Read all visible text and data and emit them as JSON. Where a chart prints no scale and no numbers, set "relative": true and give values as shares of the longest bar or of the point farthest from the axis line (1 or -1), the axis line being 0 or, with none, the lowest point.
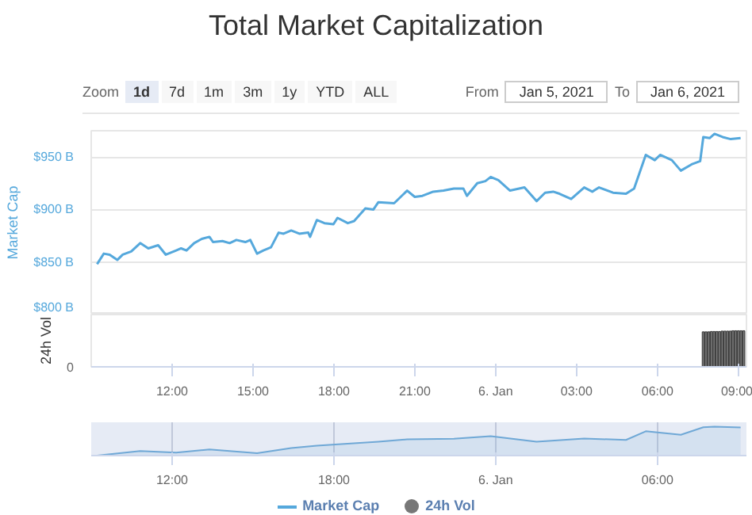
{
  "chart_data": [
    {
      "type": "line",
      "title": "Total Market Capitalization",
      "ylabel": "Market Cap",
      "annotations": [
        "Zoom",
        "1d",
        "7d",
        "1m",
        "3m",
        "1y",
        "YTD",
        "ALL",
        "From",
        "Jan 5, 2021",
        "To",
        "Jan 6, 2021"
      ],
      "xlim": [
        "2021-01-05T09:00",
        "2021-01-06T09:18"
      ],
      "ylim": [
        800,
        975
      ],
      "yticks": [
        {
          "value": 800,
          "label": "$800 B"
        },
        {
          "value": 850,
          "label": "$850 B"
        },
        {
          "value": 900,
          "label": "$900 B"
        },
        {
          "value": 950,
          "label": "$950 B"
        }
      ],
      "tick_labels": "y",
      "grid": "y",
      "legend": "bottom",
      "marker": "none",
      "series": [
        {
          "name": "Market Cap",
          "color": "#55a8dc",
          "x": [
            "2021-01-05T09:13",
            "2021-01-05T09:28",
            "2021-01-05T09:41",
            "2021-01-05T09:58",
            "2021-01-05T10:10",
            "2021-01-05T10:29",
            "2021-01-05T10:49",
            "2021-01-05T11:07",
            "2021-01-05T11:29",
            "2021-01-05T11:46",
            "2021-01-05T12:09",
            "2021-01-05T12:20",
            "2021-01-05T12:32",
            "2021-01-05T12:49",
            "2021-01-05T13:06",
            "2021-01-05T13:23",
            "2021-01-05T13:31",
            "2021-01-05T13:52",
            "2021-01-05T14:08",
            "2021-01-05T14:23",
            "2021-01-05T14:43",
            "2021-01-05T14:54",
            "2021-01-05T15:09",
            "2021-01-05T15:23",
            "2021-01-05T15:40",
            "2021-01-05T15:57",
            "2021-01-05T16:08",
            "2021-01-05T16:25",
            "2021-01-05T16:43",
            "2021-01-05T17:03",
            "2021-01-05T17:07",
            "2021-01-05T17:22",
            "2021-01-05T17:39",
            "2021-01-05T17:59",
            "2021-01-05T18:08",
            "2021-01-05T18:31",
            "2021-01-05T18:45",
            "2021-01-05T19:10",
            "2021-01-05T19:28",
            "2021-01-05T19:39",
            "2021-01-05T20:14",
            "2021-01-05T20:43",
            "2021-01-05T21:00",
            "2021-01-05T21:17",
            "2021-01-05T21:41",
            "2021-01-05T22:04",
            "2021-01-05T22:27",
            "2021-01-05T22:48",
            "2021-01-05T22:56",
            "2021-01-05T23:19",
            "2021-01-05T23:37",
            "2021-01-05T23:49",
            "2021-01-06T00:06",
            "2021-01-06T00:32",
            "2021-01-06T01:04",
            "2021-01-06T01:31",
            "2021-01-06T01:50",
            "2021-01-06T02:08",
            "2021-01-06T02:22",
            "2021-01-06T02:48",
            "2021-01-06T03:17",
            "2021-01-06T03:35",
            "2021-01-06T03:50",
            "2021-01-06T04:21",
            "2021-01-06T04:50",
            "2021-01-06T05:08",
            "2021-01-06T05:34",
            "2021-01-06T05:54",
            "2021-01-06T06:06",
            "2021-01-06T06:32",
            "2021-01-06T06:52",
            "2021-01-06T07:16",
            "2021-01-06T07:35",
            "2021-01-06T07:42",
            "2021-01-06T07:56",
            "2021-01-06T08:07",
            "2021-01-06T08:25",
            "2021-01-06T08:43",
            "2021-01-06T09:05"
          ],
          "values": [
            848,
            858,
            857,
            852,
            857,
            860,
            868,
            863,
            866,
            857,
            861,
            863,
            861,
            868,
            872,
            874,
            869,
            870,
            868,
            871,
            869,
            871,
            858,
            861,
            864,
            878,
            877,
            880,
            877,
            878,
            874,
            890,
            887,
            886,
            892,
            887,
            889,
            901,
            900,
            907,
            906,
            918,
            912,
            913,
            917,
            918,
            920,
            920,
            913,
            925,
            927,
            931,
            928,
            918,
            921,
            908,
            916,
            917,
            915,
            910,
            921,
            917,
            921,
            916,
            915,
            920,
            952,
            947,
            952,
            947,
            937,
            943,
            946,
            969,
            968,
            972,
            969,
            967,
            968
          ]
        }
      ]
    },
    {
      "type": "bar",
      "ylabel": "24h Vol",
      "relative": true,
      "annotations": [
        "0"
      ],
      "xlim": [
        "2021-01-05T09:00",
        "2021-01-06T09:18"
      ],
      "xticks": [
        {
          "value": "2021-01-05T12:00",
          "label": "12:00"
        },
        {
          "value": "2021-01-05T15:00",
          "label": "15:00"
        },
        {
          "value": "2021-01-05T18:00",
          "label": "18:00"
        },
        {
          "value": "2021-01-05T21:00",
          "label": "21:00"
        },
        {
          "value": "2021-01-06T00:00",
          "label": "6. Jan"
        },
        {
          "value": "2021-01-06T03:00",
          "label": "03:00"
        },
        {
          "value": "2021-01-06T06:00",
          "label": "06:00"
        },
        {
          "value": "2021-01-06T09:00",
          "label": "09:00"
        }
      ],
      "grid": false,
      "series": [
        {
          "name": "24h Vol",
          "color": "#777777",
          "x": [
            "2021-01-06T07:42",
            "2021-01-06T07:48",
            "2021-01-06T07:54",
            "2021-01-06T08:00",
            "2021-01-06T08:06",
            "2021-01-06T08:12",
            "2021-01-06T08:18",
            "2021-01-06T08:24",
            "2021-01-06T08:30",
            "2021-01-06T08:36",
            "2021-01-06T08:42",
            "2021-01-06T08:48",
            "2021-01-06T08:54",
            "2021-01-06T09:00",
            "2021-01-06T09:06",
            "2021-01-06T09:12"
          ],
          "values": [
            0.97,
            0.97,
            0.97,
            0.98,
            0.98,
            0.98,
            0.98,
            0.99,
            0.99,
            0.99,
            0.99,
            1,
            1,
            1,
            1,
            1
          ]
        }
      ]
    },
    {
      "type": "area",
      "relative": true,
      "xlim": [
        "2021-01-05T09:00",
        "2021-01-06T09:18"
      ],
      "xticks": [
        {
          "value": "2021-01-05T12:00",
          "label": "12:00"
        },
        {
          "value": "2021-01-05T18:00",
          "label": "18:00"
        },
        {
          "value": "2021-01-06T00:00",
          "label": "6. Jan"
        },
        {
          "value": "2021-01-06T06:00",
          "label": "06:00"
        }
      ],
      "tick_labels": "x",
      "grid": "x",
      "series": [
        {
          "color": "#6fa8d6",
          "x": [
            "2021-01-05T09:13",
            "2021-01-05T10:49",
            "2021-01-05T12:09",
            "2021-01-05T13:23",
            "2021-01-05T15:09",
            "2021-01-05T16:25",
            "2021-01-05T17:22",
            "2021-01-05T19:39",
            "2021-01-05T20:43",
            "2021-01-05T22:27",
            "2021-01-05T23:49",
            "2021-01-06T01:31",
            "2021-01-06T03:17",
            "2021-01-06T04:50",
            "2021-01-06T05:34",
            "2021-01-06T06:52",
            "2021-01-06T07:42",
            "2021-01-06T08:07",
            "2021-01-06T09:05"
          ],
          "values": [
            0,
            0.16,
            0.1,
            0.21,
            0.08,
            0.26,
            0.34,
            0.48,
            0.56,
            0.58,
            0.67,
            0.48,
            0.59,
            0.54,
            0.84,
            0.72,
            0.98,
            1,
            0.97
          ]
        }
      ]
    }
  ]
}
